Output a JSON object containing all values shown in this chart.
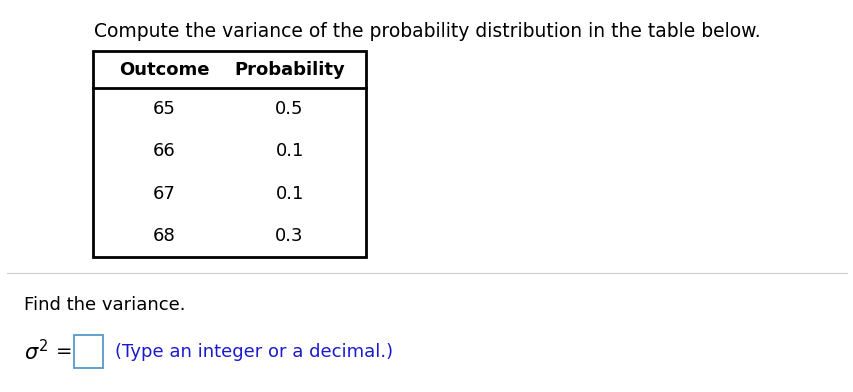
{
  "title": "Compute the variance of the probability distribution in the table below.",
  "title_fontsize": 13.5,
  "title_color": "#000000",
  "table_headers": [
    "Outcome",
    "Probability"
  ],
  "table_rows": [
    [
      "65",
      "0.5"
    ],
    [
      "66",
      "0.1"
    ],
    [
      "67",
      "0.1"
    ],
    [
      "68",
      "0.3"
    ]
  ],
  "header_fontsize": 13,
  "row_fontsize": 13,
  "find_variance_text": "Find the variance.",
  "find_variance_fontsize": 13,
  "formula_hint": "(Type an integer or a decimal.)",
  "formula_hint_color": "#1a1acd",
  "formula_fontsize": 13,
  "bg_color": "#ffffff",
  "table_border_color": "#000000",
  "box_border_color": "#5599cc",
  "separator_color": "#cccccc"
}
